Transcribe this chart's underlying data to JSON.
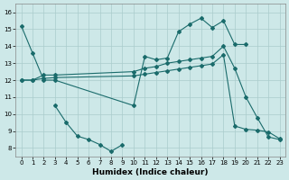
{
  "xlabel": "Humidex (Indice chaleur)",
  "bg_color": "#cde8e8",
  "grid_color": "#aacccc",
  "line_color": "#1a6b6b",
  "xlim": [
    -0.5,
    23.5
  ],
  "ylim": [
    7.5,
    16.5
  ],
  "xticks": [
    0,
    1,
    2,
    3,
    4,
    5,
    6,
    7,
    8,
    9,
    10,
    11,
    12,
    13,
    14,
    15,
    16,
    17,
    18,
    19,
    20,
    21,
    22,
    23
  ],
  "yticks": [
    8,
    9,
    10,
    11,
    12,
    13,
    14,
    15,
    16
  ],
  "line1_x": [
    0,
    1,
    2,
    3,
    10,
    11,
    12,
    13,
    14,
    15,
    16,
    17,
    18,
    19,
    20
  ],
  "line1_y": [
    15.2,
    13.6,
    12.0,
    12.0,
    10.5,
    13.4,
    13.2,
    13.3,
    14.85,
    15.3,
    15.65,
    15.1,
    15.5,
    14.1,
    14.1
  ],
  "line2_x": [
    0,
    1,
    2,
    3,
    10,
    11,
    12,
    13,
    14,
    15,
    16,
    17,
    18,
    19,
    20,
    21,
    22,
    23
  ],
  "line2_y": [
    12.0,
    12.0,
    12.3,
    12.3,
    12.5,
    12.7,
    12.8,
    13.0,
    13.1,
    13.2,
    13.3,
    13.4,
    14.0,
    12.7,
    11.0,
    9.8,
    8.65,
    8.5
  ],
  "line3_x": [
    0,
    1,
    2,
    3,
    10,
    11,
    12,
    13,
    14,
    15,
    16,
    17,
    18,
    19,
    20,
    21,
    22,
    23
  ],
  "line3_y": [
    12.0,
    12.0,
    12.1,
    12.15,
    12.25,
    12.35,
    12.45,
    12.55,
    12.65,
    12.75,
    12.85,
    12.95,
    13.5,
    9.3,
    9.1,
    9.05,
    8.95,
    8.55
  ],
  "line4_x": [
    3,
    4,
    5,
    6,
    7,
    8,
    9
  ],
  "line4_y": [
    10.5,
    9.5,
    8.7,
    8.5,
    8.2,
    7.8,
    8.2
  ]
}
